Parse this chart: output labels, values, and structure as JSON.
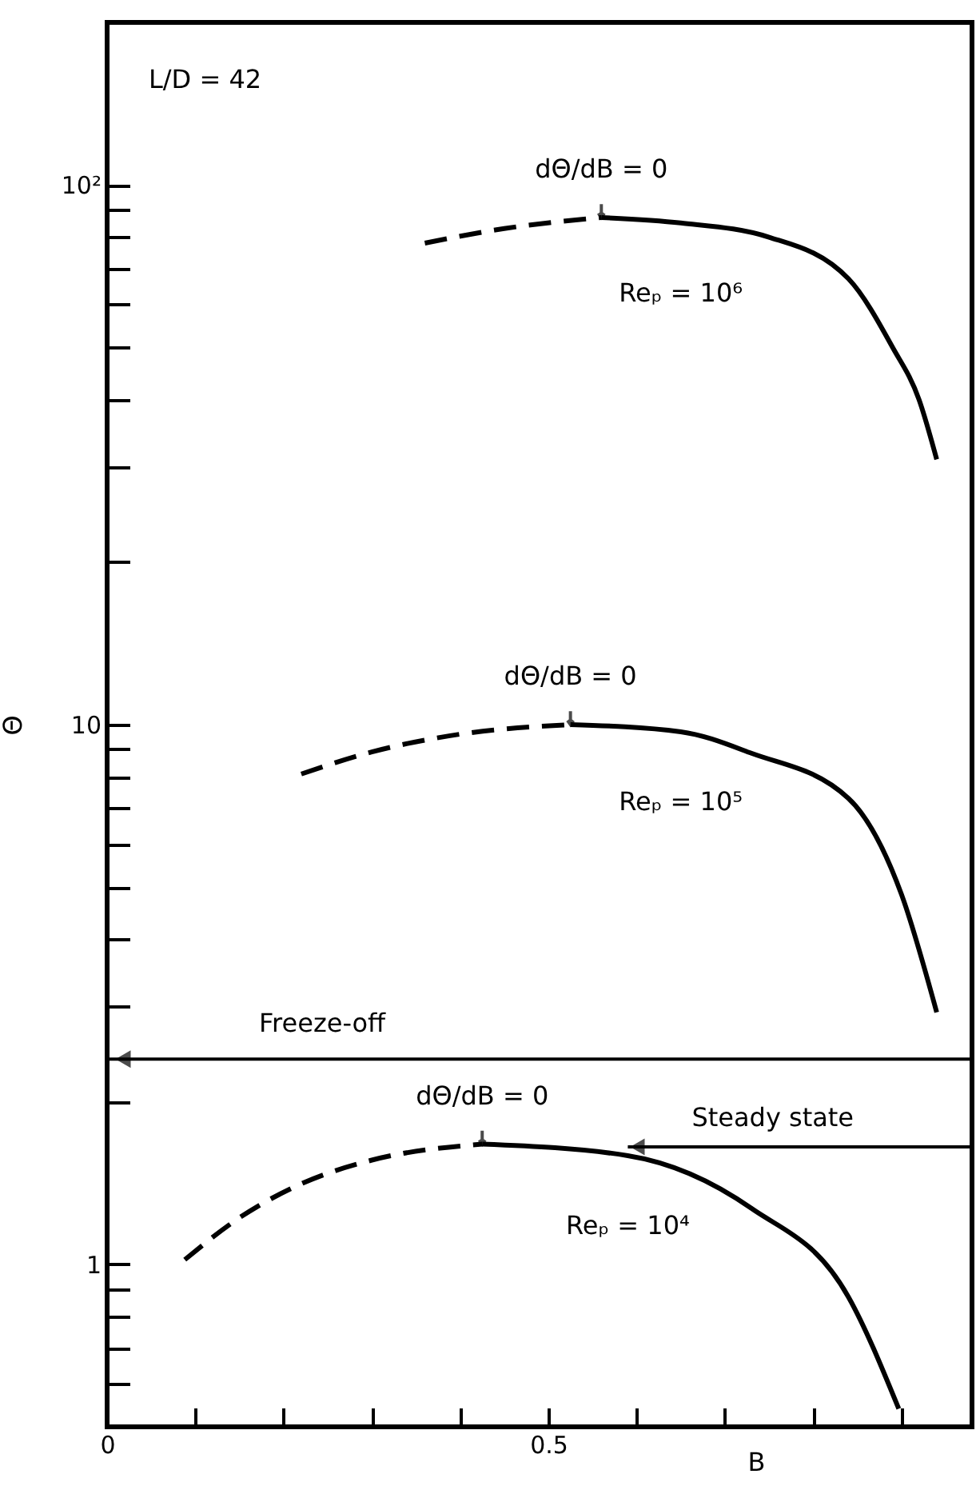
{
  "chart_data": {
    "type": "line",
    "xlabel": "B",
    "ylabel": "Θ",
    "log": "y",
    "grid": false,
    "xlim": [
      0,
      0.98
    ],
    "xticks": [
      0,
      {
        "value": 0.1,
        "label": null
      },
      {
        "value": 0.2,
        "label": null
      },
      {
        "value": 0.3,
        "label": null
      },
      {
        "value": 0.4,
        "label": null
      },
      0.5,
      {
        "value": 0.6,
        "label": null
      },
      {
        "value": 0.7,
        "label": null
      },
      {
        "value": 0.8,
        "label": null
      },
      {
        "value": 0.9,
        "label": null
      }
    ],
    "ylim": [
      0.5,
      200
    ],
    "yticks": [
      {
        "value": 0.6,
        "label": null
      },
      {
        "value": 0.7,
        "label": null
      },
      {
        "value": 0.8,
        "label": null
      },
      {
        "value": 0.9,
        "label": null
      },
      1,
      {
        "value": 2,
        "label": null
      },
      {
        "value": 3,
        "label": null
      },
      {
        "value": 4,
        "label": null
      },
      {
        "value": 5,
        "label": null
      },
      {
        "value": 6,
        "label": null
      },
      {
        "value": 7,
        "label": null
      },
      {
        "value": 8,
        "label": null
      },
      {
        "value": 9,
        "label": null
      },
      10,
      {
        "value": 20,
        "label": null
      },
      {
        "value": 30,
        "label": null
      },
      {
        "value": 40,
        "label": null
      },
      {
        "value": 50,
        "label": null
      },
      {
        "value": 60,
        "label": null
      },
      {
        "value": 70,
        "label": null
      },
      {
        "value": 80,
        "label": null
      },
      {
        "value": 90,
        "label": null
      },
      {
        "value": 100,
        "label": "10²"
      }
    ],
    "series": [
      {
        "color": "#000000",
        "line_style": "dashed",
        "x": [
          0.36,
          0.45,
          0.56
        ],
        "values": [
          78,
          83,
          87
        ]
      },
      {
        "name": "Reₚ = 10⁶",
        "color": "#000000",
        "line_style": "solid",
        "x": [
          0.56,
          0.65,
          0.75,
          0.84,
          0.89,
          0.92,
          0.94
        ],
        "values": [
          87,
          85,
          80,
          67,
          50,
          40,
          31
        ]
      },
      {
        "color": "#000000",
        "line_style": "dashed",
        "x": [
          0.22,
          0.3,
          0.4,
          0.525
        ],
        "values": [
          8.1,
          8.9,
          9.6,
          10
        ]
      },
      {
        "name": "Reₚ = 10⁵",
        "color": "#000000",
        "line_style": "solid",
        "x": [
          0.525,
          0.65,
          0.73,
          0.84,
          0.9,
          0.94
        ],
        "values": [
          10,
          9.7,
          8.85,
          7.3,
          4.85,
          2.93
        ]
      },
      {
        "color": "#000000",
        "line_style": "dashed",
        "x": [
          0.088,
          0.15,
          0.22,
          0.3,
          0.425
        ],
        "values": [
          1.02,
          1.22,
          1.41,
          1.56,
          1.67
        ]
      },
      {
        "name": "Reₚ = 10⁴",
        "color": "#000000",
        "line_style": "solid",
        "x": [
          0.425,
          0.59,
          0.73,
          0.84,
          0.897
        ],
        "values": [
          1.67,
          1.59,
          1.27,
          0.87,
          0.54
        ]
      }
    ],
    "ref_lines": [
      {
        "axis": "y",
        "value": 2.4,
        "label": "Freeze-off",
        "color": "#000000"
      }
    ],
    "annotations": [
      "L/D = 42",
      {
        "text": "dΘ/dB = 0",
        "x": 0.56,
        "y": 87
      },
      {
        "text": "dΘ/dB = 0",
        "x": 0.525,
        "y": 10
      },
      {
        "text": "dΘ/dB = 0",
        "x": 0.425,
        "y": 1.67
      },
      {
        "text": "Steady state",
        "x": 0.59,
        "y": 1.65
      }
    ]
  }
}
